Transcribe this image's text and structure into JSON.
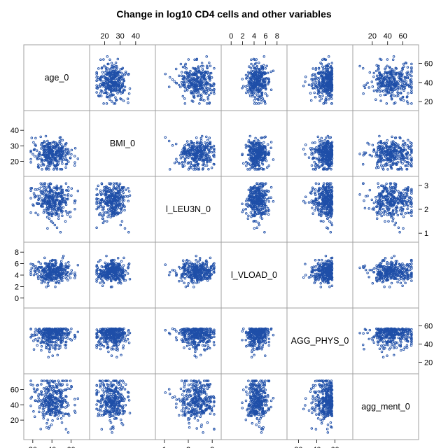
{
  "chart_data": {
    "type": "scatter-matrix",
    "title": "Change in log10 CD4 cells and other variables",
    "colors": {
      "marker": "#1f4fa8",
      "frame": "#a0a0a0",
      "background": "#ffffff"
    },
    "variables": [
      {
        "name": "age_0",
        "range": [
          15,
          75
        ],
        "ticks": [
          "20",
          "40",
          "60"
        ],
        "tick_values": [
          20,
          40,
          60
        ],
        "mean": 40,
        "sd": 10
      },
      {
        "name": "BMI_0",
        "range": [
          13,
          50
        ],
        "ticks": [
          "20",
          "30",
          "40"
        ],
        "tick_values": [
          20,
          30,
          40
        ],
        "mean": 25,
        "sd": 4.5
      },
      {
        "name": "l_LEU3N_0",
        "range": [
          0.8,
          3.2
        ],
        "ticks": [
          "1",
          "2",
          "3"
        ],
        "tick_values": [
          1,
          2,
          3
        ],
        "mean": 2.55,
        "sd": 0.35
      },
      {
        "name": "l_VLOAD_0",
        "range": [
          -1,
          9
        ],
        "ticks": [
          "0",
          "2",
          "4",
          "6",
          "8"
        ],
        "tick_values": [
          0,
          2,
          4,
          6,
          8
        ],
        "mean": 4.5,
        "sd": 0.9
      },
      {
        "name": "AGG_PHYS_0",
        "range": [
          12,
          75
        ],
        "ticks": [
          "20",
          "40",
          "60"
        ],
        "tick_values": [
          20,
          40,
          60
        ],
        "mean": 52,
        "sd": 10
      },
      {
        "name": "agg_ment_0",
        "range": [
          0,
          75
        ],
        "ticks": [
          "20",
          "40",
          "60"
        ],
        "tick_values": [
          20,
          40,
          60
        ],
        "mean": 45,
        "sd": 14
      }
    ],
    "axis_placement": {
      "top": [
        "BMI_0",
        "l_VLOAD_0",
        "agg_ment_0"
      ],
      "bottom": [
        "age_0",
        "l_LEU3N_0",
        "AGG_PHYS_0"
      ],
      "left": [
        "BMI_0",
        "l_VLOAD_0",
        "agg_ment_0"
      ],
      "right": [
        "age_0",
        "l_LEU3N_0",
        "AGG_PHYS_0"
      ]
    },
    "n_points": 320,
    "marker": "open-circle"
  }
}
